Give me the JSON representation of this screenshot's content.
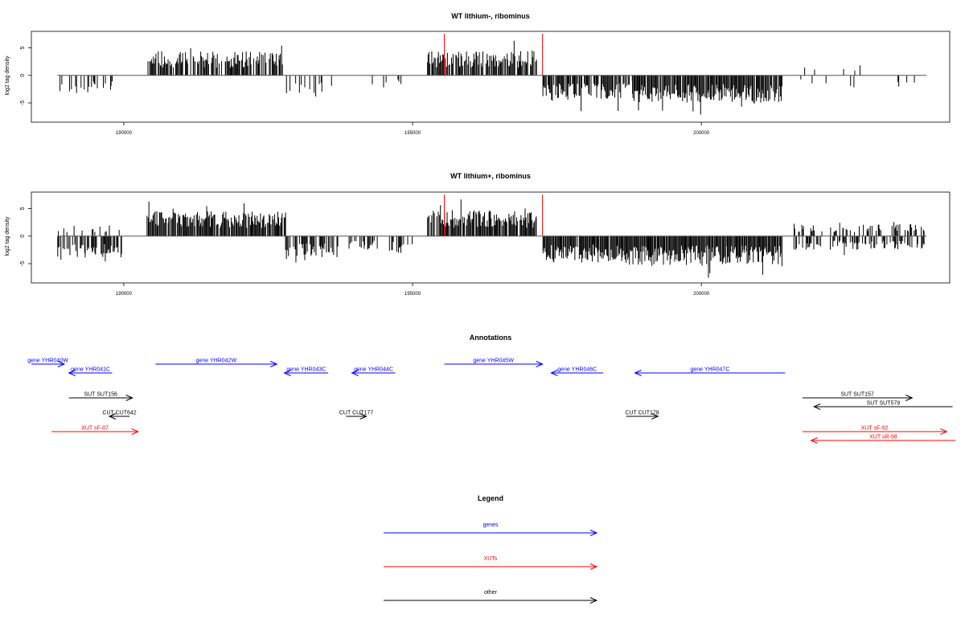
{
  "chart_data": [
    {
      "type": "bar",
      "title": "WT lithium-, ribominus",
      "xlabel": "",
      "ylabel": "log2 tag density",
      "xlim": [
        188400,
        204300
      ],
      "ylim": [
        -8.5,
        8
      ],
      "yticks": [
        -5,
        0,
        5
      ],
      "yticklabels": [
        "-5",
        "0",
        "5"
      ],
      "xticks": [
        190000,
        195000,
        200000
      ],
      "xticklabels": [
        "190000",
        "195000",
        "200000"
      ],
      "marker_lines": [
        195550,
        197250
      ],
      "marker_color": "#ff0000",
      "baseline_end": 203900,
      "seed": 11,
      "profile": [
        {
          "from": 188850,
          "to": 189300,
          "sign": -1,
          "mag": 3.2,
          "density": 0.22
        },
        {
          "from": 189300,
          "to": 189800,
          "sign": -1,
          "mag": 2.8,
          "density": 0.35
        },
        {
          "from": 190400,
          "to": 192750,
          "sign": 1,
          "mag": 4.0,
          "density": 0.8
        },
        {
          "from": 192750,
          "to": 193600,
          "sign": -1,
          "mag": 3.5,
          "density": 0.3
        },
        {
          "from": 193800,
          "to": 194900,
          "sign": -1,
          "mag": 2.2,
          "density": 0.12
        },
        {
          "from": 195250,
          "to": 197150,
          "sign": 1,
          "mag": 4.0,
          "density": 0.8
        },
        {
          "from": 197250,
          "to": 198600,
          "sign": -1,
          "mag": 4.2,
          "density": 0.8
        },
        {
          "from": 198600,
          "to": 198800,
          "sign": -1,
          "mag": 2.5,
          "density": 0.3
        },
        {
          "from": 198800,
          "to": 201400,
          "sign": -1,
          "mag": 4.5,
          "density": 0.95
        },
        {
          "from": 201600,
          "to": 203900,
          "sign": -1,
          "mag": 2.0,
          "density": 0.08
        },
        {
          "from": 201600,
          "to": 203200,
          "sign": 1,
          "mag": 2.2,
          "density": 0.05
        }
      ]
    },
    {
      "type": "bar",
      "title": "WT lithium+, ribominus",
      "xlabel": "",
      "ylabel": "log2 tag density",
      "xlim": [
        188400,
        204300
      ],
      "ylim": [
        -8.5,
        8
      ],
      "yticks": [
        -5,
        0,
        5
      ],
      "yticklabels": [
        "-5",
        "0",
        "5"
      ],
      "xticks": [
        190000,
        195000,
        200000
      ],
      "xticklabels": [
        "190000",
        "195000",
        "200000"
      ],
      "marker_lines": [
        195550,
        197250
      ],
      "marker_color": "#ff0000",
      "baseline_end": 203900,
      "seed": 29,
      "profile": [
        {
          "from": 188850,
          "to": 190000,
          "sign": -1,
          "mag": 3.6,
          "density": 0.75
        },
        {
          "from": 188850,
          "to": 190000,
          "sign": 1,
          "mag": 1.8,
          "density": 0.15
        },
        {
          "from": 190400,
          "to": 192800,
          "sign": 1,
          "mag": 4.2,
          "density": 0.9
        },
        {
          "from": 192800,
          "to": 193700,
          "sign": -1,
          "mag": 3.8,
          "density": 0.7
        },
        {
          "from": 193900,
          "to": 194400,
          "sign": -1,
          "mag": 2.4,
          "density": 0.5
        },
        {
          "from": 194600,
          "to": 195000,
          "sign": -1,
          "mag": 2.8,
          "density": 0.55
        },
        {
          "from": 195250,
          "to": 197150,
          "sign": 1,
          "mag": 4.3,
          "density": 0.9
        },
        {
          "from": 197250,
          "to": 198600,
          "sign": -1,
          "mag": 4.4,
          "density": 0.95
        },
        {
          "from": 198600,
          "to": 201400,
          "sign": -1,
          "mag": 4.8,
          "density": 1.0
        },
        {
          "from": 201600,
          "to": 203900,
          "sign": -1,
          "mag": 2.3,
          "density": 0.45
        },
        {
          "from": 201600,
          "to": 203900,
          "sign": 1,
          "mag": 2.0,
          "density": 0.35
        }
      ]
    }
  ],
  "annotations": {
    "title": "Annotations",
    "items": [
      {
        "label": "gene YHR040W",
        "color": "#0000ff",
        "dir": 1,
        "lane": 0,
        "from": 188400,
        "to": 188970
      },
      {
        "label": "gene YHR041C",
        "color": "#0000ff",
        "dir": -1,
        "lane": 1,
        "from": 189050,
        "to": 189800
      },
      {
        "label": "gene YHR042W",
        "color": "#0000ff",
        "dir": 1,
        "lane": 0,
        "from": 190550,
        "to": 192650
      },
      {
        "label": "gene YHR043C",
        "color": "#0000ff",
        "dir": -1,
        "lane": 1,
        "from": 192780,
        "to": 193540
      },
      {
        "label": "gene YHR044C",
        "color": "#0000ff",
        "dir": -1,
        "lane": 1,
        "from": 193950,
        "to": 194700
      },
      {
        "label": "gene YHR045W",
        "color": "#0000ff",
        "dir": 1,
        "lane": 0,
        "from": 195550,
        "to": 197250
      },
      {
        "label": "gene YHR046C",
        "color": "#0000ff",
        "dir": -1,
        "lane": 1,
        "from": 197400,
        "to": 198300
      },
      {
        "label": "gene YHR047C",
        "color": "#0000ff",
        "dir": -1,
        "lane": 1,
        "from": 198850,
        "to": 201450
      },
      {
        "label": "SUT SUT156",
        "color": "#000000",
        "dir": 1,
        "lane": 2,
        "from": 189050,
        "to": 190150
      },
      {
        "label": "SUT SUT157",
        "color": "#000000",
        "dir": 1,
        "lane": 2,
        "from": 201750,
        "to": 203650
      },
      {
        "label": "SUT SUT579",
        "color": "#000000",
        "dir": -1,
        "lane": 3,
        "from": 201950,
        "to": 204350
      },
      {
        "label": "CUT CUT642",
        "color": "#000000",
        "dir": -1,
        "lane": 4,
        "from": 189750,
        "to": 190100
      },
      {
        "label": "XUT sF-87",
        "color": "#ff0000",
        "dir": 1,
        "lane": 5,
        "from": 188750,
        "to": 190250
      },
      {
        "label": "CUT CUT177",
        "color": "#000000",
        "dir": 1,
        "lane": 4,
        "from": 193850,
        "to": 194200
      },
      {
        "label": "CUT CUT178",
        "color": "#000000",
        "dir": 1,
        "lane": 4,
        "from": 198700,
        "to": 199250
      },
      {
        "label": "XUT sF-92",
        "color": "#ff0000",
        "dir": 1,
        "lane": 6,
        "from": 201750,
        "to": 204250
      },
      {
        "label": "XUT sR-98",
        "color": "#ff0000",
        "dir": -1,
        "lane": 7,
        "from": 201900,
        "to": 204400
      }
    ]
  },
  "legend": {
    "title": "Legend",
    "items": [
      {
        "label": "genes",
        "color": "#0000ff"
      },
      {
        "label": "XUTs",
        "color": "#ff0000"
      },
      {
        "label": "other",
        "color": "#000000"
      }
    ]
  }
}
